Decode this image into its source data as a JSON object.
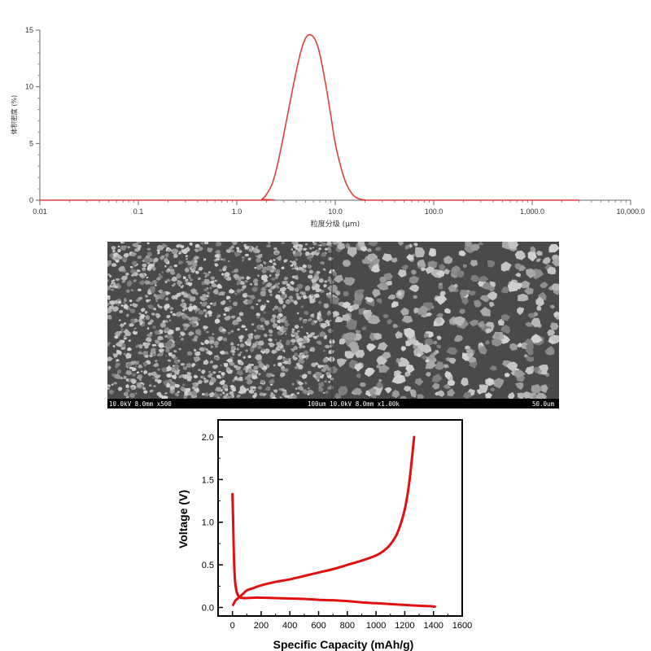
{
  "chart_data": [
    {
      "type": "line",
      "xscale": "log",
      "xlabel": "粒度分级 (μm)",
      "ylabel": "体积密度 (%)",
      "xlim": [
        0.01,
        10000
      ],
      "ylim": [
        0,
        15
      ],
      "xticks": [
        "0.01",
        "0.1",
        "1.0",
        "10.0",
        "100.0",
        "1,000.0",
        "10,000.0"
      ],
      "yticks": [
        "0",
        "5",
        "10",
        "15"
      ],
      "series": [
        {
          "color": "#e0403c",
          "x": [
            0.01,
            1.6,
            1.8,
            2.0,
            2.3,
            2.6,
            3.0,
            3.5,
            4.0,
            4.5,
            5.0,
            5.5,
            6.0,
            6.5,
            7.0,
            8.0,
            9.0,
            10.0,
            11.5,
            13.0,
            15.0,
            17.0,
            20.0,
            30.0,
            3000
          ],
          "y": [
            0,
            0,
            0.1,
            0.5,
            1.5,
            3.2,
            5.8,
            8.8,
            11.3,
            13.2,
            14.3,
            14.6,
            14.4,
            13.8,
            12.8,
            10.2,
            7.5,
            5.0,
            2.8,
            1.4,
            0.5,
            0.15,
            0.02,
            0,
            0
          ]
        }
      ]
    },
    {
      "type": "line",
      "xlabel": "Specific Capacity  (mAh/g)",
      "ylabel": "Voltage  (V)",
      "xlim": [
        -100,
        1600
      ],
      "ylim": [
        -0.1,
        2.2
      ],
      "xticks": [
        0,
        200,
        400,
        600,
        800,
        1000,
        1200,
        1400,
        1600
      ],
      "yticks": [
        "0.0",
        "0.5",
        "1.0",
        "1.5",
        "2.0"
      ],
      "series": [
        {
          "color": "#e01010",
          "x": [
            0,
            5,
            10,
            15,
            20,
            30,
            40,
            50,
            60,
            80,
            100,
            150,
            200,
            300,
            400,
            500,
            600,
            700,
            800,
            900,
            1000,
            1100,
            1200,
            1300,
            1380,
            1410
          ],
          "y": [
            1.33,
            1.0,
            0.6,
            0.4,
            0.28,
            0.18,
            0.14,
            0.12,
            0.115,
            0.11,
            0.11,
            0.115,
            0.115,
            0.11,
            0.105,
            0.1,
            0.09,
            0.085,
            0.075,
            0.06,
            0.05,
            0.04,
            0.03,
            0.02,
            0.015,
            0.01
          ]
        },
        {
          "color": "#e01010",
          "x": [
            5,
            20,
            40,
            60,
            80,
            100,
            150,
            200,
            300,
            400,
            500,
            600,
            700,
            800,
            900,
            1000,
            1050,
            1100,
            1150,
            1200,
            1230,
            1250,
            1265
          ],
          "y": [
            0.03,
            0.08,
            0.11,
            0.14,
            0.17,
            0.2,
            0.23,
            0.26,
            0.3,
            0.33,
            0.37,
            0.41,
            0.45,
            0.5,
            0.55,
            0.61,
            0.66,
            0.74,
            0.88,
            1.15,
            1.45,
            1.75,
            2.0
          ]
        }
      ]
    }
  ],
  "sem": {
    "left_caption": "10.0kV 8.0mm x500",
    "middle_caption": "100um 10.0kV 8.0mm x1.00k",
    "right_caption": "50.0um"
  }
}
